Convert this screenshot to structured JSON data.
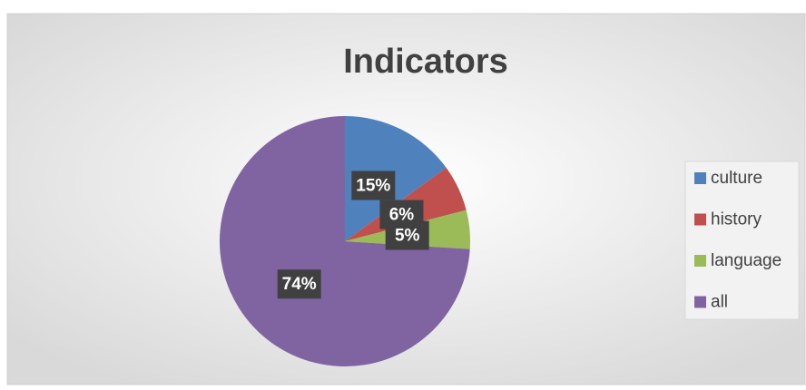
{
  "chart_data": {
    "type": "pie",
    "title": "Indicators",
    "categories": [
      "culture",
      "history",
      "language",
      "all"
    ],
    "values": [
      15,
      6,
      5,
      74
    ],
    "value_labels": [
      "15%",
      "6%",
      "5%",
      "74%"
    ],
    "colors": [
      "#4f81bd",
      "#c0504d",
      "#9bbb59",
      "#8064a2"
    ],
    "legend": "right"
  }
}
